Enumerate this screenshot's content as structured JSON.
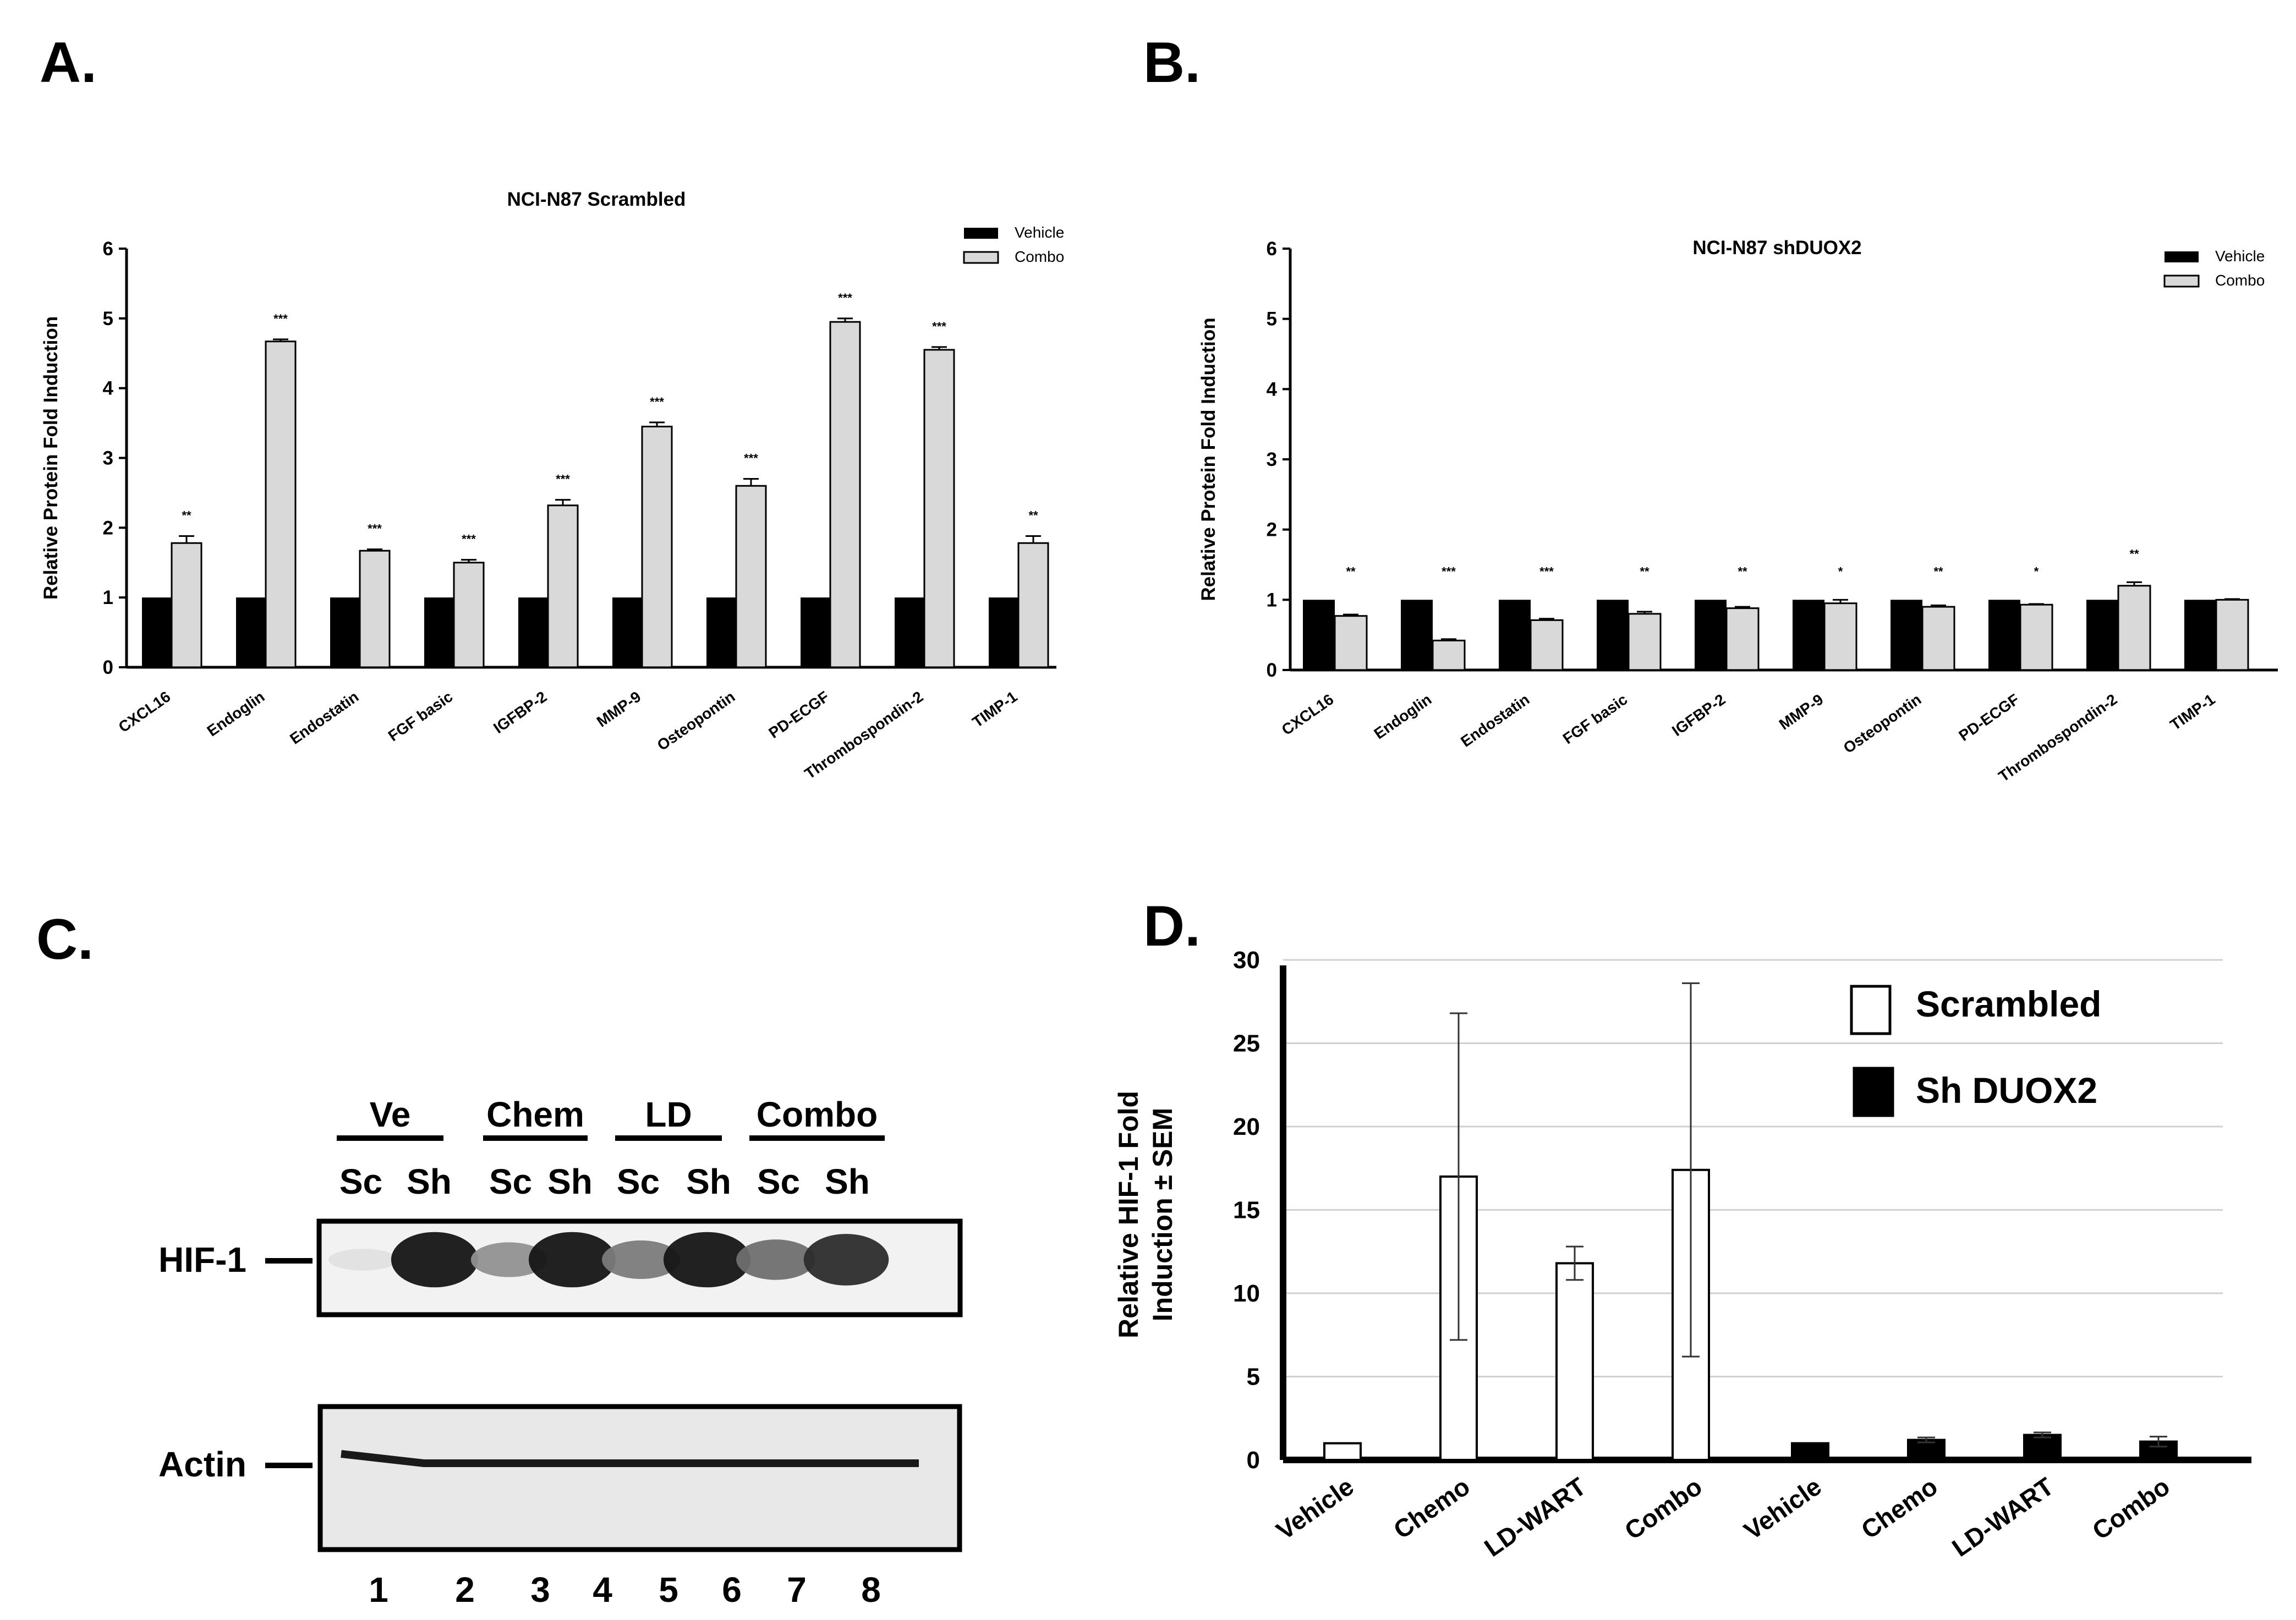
{
  "panel_labels": {
    "a": "A.",
    "b": "B.",
    "c": "C.",
    "d": "D."
  },
  "colors": {
    "vehicle": "#000000",
    "combo": "#d9d9d9",
    "scrambled": "#ffffff",
    "shduox2": "#000000"
  },
  "chart_data": [
    {
      "id": "A",
      "type": "bar",
      "title": "NCI-N87 Scrambled",
      "ylabel": "Relative Protein Fold Induction",
      "xlabel": "",
      "ylim": [
        0,
        6
      ],
      "yticks": [
        "0",
        "1",
        "2",
        "3",
        "4",
        "5",
        "6"
      ],
      "legend_position": "top-right",
      "categories": [
        "CXCL16",
        "Endoglin",
        "Endostatin",
        "FGF basic",
        "IGFBP-2",
        "MMP-9",
        "Osteopontin",
        "PD-ECGF",
        "Thrombospondin-2",
        "TIMP-1"
      ],
      "series": [
        {
          "name": "Vehicle",
          "values": [
            1,
            1,
            1,
            1,
            1,
            1,
            1,
            1,
            1,
            1
          ]
        },
        {
          "name": "Combo",
          "values": [
            1.78,
            4.67,
            1.67,
            1.5,
            2.32,
            3.45,
            2.6,
            4.95,
            4.55,
            1.78
          ],
          "errors": [
            0.1,
            0.03,
            0.02,
            0.04,
            0.08,
            0.06,
            0.1,
            0.05,
            0.04,
            0.1
          ]
        }
      ],
      "significance": [
        "**",
        "***",
        "***",
        "***",
        "***",
        "***",
        "***",
        "***",
        "***",
        "**"
      ]
    },
    {
      "id": "B",
      "type": "bar",
      "title": "NCI-N87 shDUOX2",
      "ylabel": "Relative Protein Fold Induction",
      "xlabel": "",
      "ylim": [
        0,
        6
      ],
      "yticks": [
        "0",
        "1",
        "2",
        "3",
        "4",
        "5",
        "6"
      ],
      "legend_position": "top-right",
      "categories": [
        "CXCL16",
        "Endoglin",
        "Endostatin",
        "FGF basic",
        "IGFBP-2",
        "MMP-9",
        "Osteopontin",
        "PD-ECGF",
        "Thrombospondin-2",
        "TIMP-1"
      ],
      "series": [
        {
          "name": "Vehicle",
          "values": [
            1,
            1,
            1,
            1,
            1,
            1,
            1,
            1,
            1,
            1
          ]
        },
        {
          "name": "Combo",
          "values": [
            0.77,
            0.42,
            0.71,
            0.8,
            0.88,
            0.95,
            0.9,
            0.93,
            1.2,
            1.0
          ],
          "errors": [
            0.02,
            0.02,
            0.02,
            0.03,
            0.02,
            0.05,
            0.02,
            0.01,
            0.05,
            0.01
          ]
        }
      ],
      "significance": [
        "**",
        "***",
        "***",
        "**",
        "**",
        "*",
        "**",
        "*",
        "**",
        ""
      ]
    },
    {
      "id": "D",
      "type": "bar",
      "title": "",
      "ylabel_lines": [
        "Relative HIF-1 Fold",
        "Induction ± SEM"
      ],
      "xlabel": "",
      "ylim": [
        0,
        30
      ],
      "yticks": [
        "0",
        "5",
        "10",
        "15",
        "20",
        "25",
        "30"
      ],
      "grid": true,
      "legend_position": "top-right",
      "categories": [
        "Vehicle",
        "Chemo",
        "LD-WART",
        "Combo",
        "Vehicle",
        "Chemo",
        "LD-WART",
        "Combo"
      ],
      "values": [
        1.0,
        17.0,
        11.8,
        17.4,
        1.0,
        1.2,
        1.5,
        1.1
      ],
      "errors": [
        0,
        9.8,
        1.0,
        11.2,
        0,
        0.15,
        0.15,
        0.3
      ],
      "groups": [
        "Scrambled",
        "Scrambled",
        "Scrambled",
        "Scrambled",
        "Sh DUOX2",
        "Sh DUOX2",
        "Sh DUOX2",
        "Sh DUOX2"
      ],
      "series": [
        {
          "name": "Scrambled"
        },
        {
          "name": "Sh DUOX2"
        }
      ]
    }
  ],
  "blot": {
    "groups": [
      "Ve",
      "Chem",
      "LD",
      "Combo"
    ],
    "subgroups": [
      "Sc",
      "Sh",
      "Sc",
      "Sh",
      "Sc",
      "Sh",
      "Sc",
      "Sh"
    ],
    "rows": [
      "HIF-1",
      "Actin"
    ],
    "lanes": [
      "1",
      "2",
      "3",
      "4",
      "5",
      "6",
      "7",
      "8"
    ],
    "hif1_intensity": [
      0.05,
      0.95,
      0.4,
      0.95,
      0.5,
      0.95,
      0.55,
      0.85
    ]
  }
}
